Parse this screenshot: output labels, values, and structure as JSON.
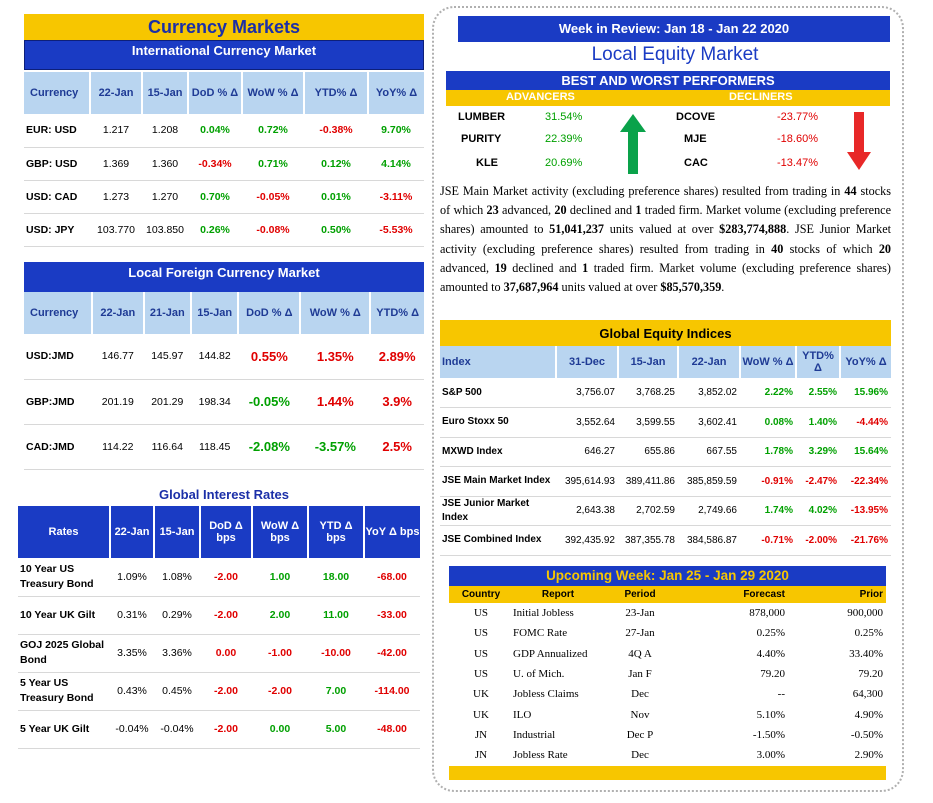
{
  "currency_markets": {
    "title": "Currency Markets",
    "international": {
      "title": "International Currency Market",
      "headers": [
        "Currency",
        "22-Jan",
        "15-Jan",
        "DoD % Δ",
        "WoW % Δ",
        "YTD% Δ",
        "YoY% Δ"
      ],
      "rows": [
        [
          "EUR: USD",
          "1.217",
          "1.208",
          "0.04%",
          "0.72%",
          "-0.38%",
          "9.70%"
        ],
        [
          "GBP: USD",
          "1.369",
          "1.360",
          "-0.34%",
          "0.71%",
          "0.12%",
          "4.14%"
        ],
        [
          "USD: CAD",
          "1.273",
          "1.270",
          "0.70%",
          "-0.05%",
          "0.01%",
          "-3.11%"
        ],
        [
          "USD: JPY",
          "103.770",
          "103.850",
          "0.26%",
          "-0.08%",
          "0.50%",
          "-5.53%"
        ]
      ]
    },
    "local": {
      "title": "Local Foreign Currency Market",
      "headers": [
        "Currency",
        "22-Jan",
        "21-Jan",
        "15-Jan",
        "DoD % Δ",
        "WoW % Δ",
        "YTD% Δ"
      ],
      "rows": [
        [
          "USD:JMD",
          "146.77",
          "145.97",
          "144.82",
          "0.55%",
          "1.35%",
          "2.89%"
        ],
        [
          "GBP:JMD",
          "201.19",
          "201.29",
          "198.34",
          "-0.05%",
          "1.44%",
          "3.9%"
        ],
        [
          "CAD:JMD",
          "114.22",
          "116.64",
          "118.45",
          "-2.08%",
          "-3.57%",
          "2.5%"
        ]
      ]
    }
  },
  "interest_rates": {
    "title": "Global Interest Rates",
    "headers": [
      "Rates",
      "22-Jan",
      "15-Jan",
      "DoD Δ bps",
      "WoW Δ bps",
      "YTD Δ bps",
      "YoY Δ bps"
    ],
    "rows": [
      [
        "10 Year US Treasury Bond",
        "1.09%",
        "1.08%",
        "-2.00",
        "1.00",
        "18.00",
        "-68.00"
      ],
      [
        "10 Year UK Gilt",
        "0.31%",
        "0.29%",
        "-2.00",
        "2.00",
        "11.00",
        "-33.00"
      ],
      [
        "GOJ 2025 Global Bond",
        "3.35%",
        "3.36%",
        "0.00",
        "-1.00",
        "-10.00",
        "-42.00"
      ],
      [
        "5 Year US Treasury Bond",
        "0.43%",
        "0.45%",
        "-2.00",
        "-2.00",
        "7.00",
        "-114.00"
      ],
      [
        "5 Year UK Gilt",
        "-0.04%",
        "-0.04%",
        "-2.00",
        "0.00",
        "5.00",
        "-48.00"
      ]
    ]
  },
  "week_in_review": "Week in Review:  Jan 18 - Jan 22 2020",
  "local_equity": {
    "title": "Local Equity Market",
    "performers_title": "BEST AND WORST PERFORMERS",
    "advancers_label": "ADVANCERS",
    "decliners_label": "DECLINERS",
    "advancers": [
      {
        "name": "LUMBER",
        "pct": "31.54%"
      },
      {
        "name": "PURITY",
        "pct": "22.39%"
      },
      {
        "name": "KLE",
        "pct": "20.69%"
      }
    ],
    "decliners": [
      {
        "name": "DCOVE",
        "pct": "-23.77%"
      },
      {
        "name": "MJE",
        "pct": "-18.60%"
      },
      {
        "name": "CAC",
        "pct": "-13.47%"
      }
    ],
    "text": {
      "p1": "JSE Main Market activity (excluding preference shares) resulted from trading in ",
      "n1": "44",
      "p2": " stocks of which ",
      "n2": "23",
      "p3": " advanced, ",
      "n3": "20",
      "p4": " declined and ",
      "n4": "1",
      "p5": "  traded firm. Market volume (excluding preference shares) amounted to ",
      "n5": "51,041,237",
      "p6": " units valued at over ",
      "n6": "$283,774,888",
      "p7": ". JSE Junior Market activity (excluding preference shares) resulted from trading in ",
      "n7": "40",
      "p8": "  stocks of which ",
      "n8": "20",
      "p9": " advanced, ",
      "n9": "19",
      "p10": "  declined and ",
      "n10": "1",
      "p11": "  traded firm. Market volume (excluding preference shares) amounted to ",
      "n11": "37,687,964",
      "p12": " units valued at over ",
      "n12": "$85,570,359",
      "p13": "."
    }
  },
  "global_equity": {
    "title": "Global Equity Indices",
    "headers": [
      "Index",
      "31-Dec",
      "15-Jan",
      "22-Jan",
      "WoW % Δ",
      "YTD% Δ",
      "YoY% Δ"
    ],
    "rows": [
      [
        "S&P 500",
        "3,756.07",
        "3,768.25",
        "3,852.02",
        "2.22%",
        "2.55%",
        "15.96%"
      ],
      [
        "Euro Stoxx 50",
        "3,552.64",
        "3,599.55",
        "3,602.41",
        "0.08%",
        "1.40%",
        "-4.44%"
      ],
      [
        "MXWD  Index",
        "646.27",
        "655.86",
        "667.55",
        "1.78%",
        "3.29%",
        "15.64%"
      ],
      [
        "JSE Main Market Index",
        "395,614.93",
        "389,411.86",
        "385,859.59",
        "-0.91%",
        "-2.47%",
        "-22.34%"
      ],
      [
        "JSE Junior Market Index",
        "2,643.38",
        "2,702.59",
        "2,749.66",
        "1.74%",
        "4.02%",
        "-13.95%"
      ],
      [
        "JSE Combined Index",
        "392,435.92",
        "387,355.78",
        "384,586.87",
        "-0.71%",
        "-2.00%",
        "-21.76%"
      ]
    ]
  },
  "upcoming": {
    "title": "Upcoming Week:  Jan 25 - Jan 29 2020",
    "headers": [
      "Country",
      "Report",
      "Period",
      "Forecast",
      "Prior"
    ],
    "rows": [
      [
        "US",
        "Initial Jobless",
        "23-Jan",
        "878,000",
        "900,000"
      ],
      [
        "US",
        "FOMC Rate",
        "27-Jan",
        "0.25%",
        "0.25%"
      ],
      [
        "US",
        "GDP Annualized",
        "4Q A",
        "4.40%",
        "33.40%"
      ],
      [
        "US",
        "U. of Mich.",
        "Jan F",
        "79.20",
        "79.20"
      ],
      [
        "UK",
        "Jobless Claims",
        "Dec",
        "--",
        "64,300"
      ],
      [
        "UK",
        "ILO",
        "Nov",
        "5.10%",
        "4.90%"
      ],
      [
        "JN",
        "Industrial",
        "Dec P",
        "-1.50%",
        "-0.50%"
      ],
      [
        "JN",
        "Jobless Rate",
        "Dec",
        "3.00%",
        "2.90%"
      ]
    ]
  },
  "colors": {
    "brand_blue": "#1a3bc4",
    "gold": "#f7c600",
    "light_blue": "#b9d5f0",
    "positive": "#00a000",
    "negative": "#e00000"
  }
}
